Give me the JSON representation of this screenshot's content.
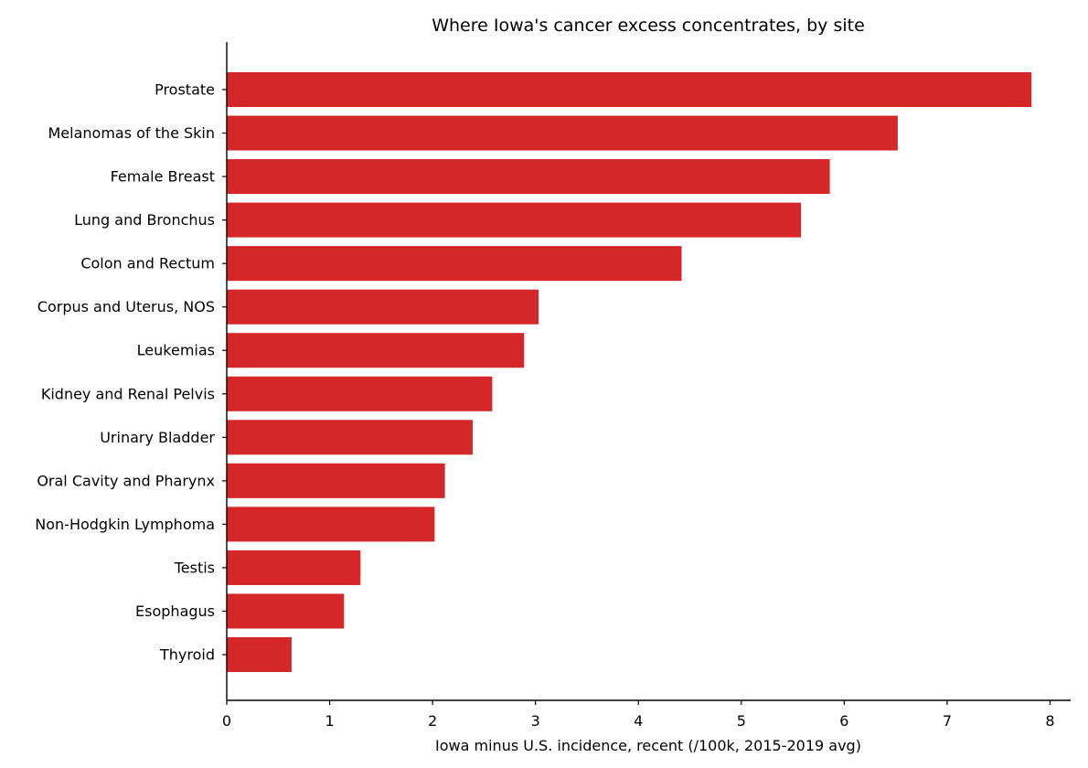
{
  "chart_data": {
    "type": "bar",
    "orientation": "horizontal",
    "title": "Where Iowa's cancer excess concentrates, by site",
    "xlabel": "Iowa minus U.S. incidence, recent (/100k, 2015-2019 avg)",
    "ylabel": "",
    "xlim": [
      0,
      8.2
    ],
    "xticks": [
      0,
      1,
      2,
      3,
      4,
      5,
      6,
      7,
      8
    ],
    "grid": false,
    "legend": "none",
    "bar_color": "#d62728",
    "categories": [
      "Prostate",
      "Melanomas of the Skin",
      "Female Breast",
      "Lung and Bronchus",
      "Colon and Rectum",
      "Corpus and Uterus, NOS",
      "Leukemias",
      "Kidney and Renal Pelvis",
      "Urinary Bladder",
      "Oral Cavity and Pharynx",
      "Non-Hodgkin Lymphoma",
      "Testis",
      "Esophagus",
      "Thyroid"
    ],
    "values": [
      7.82,
      6.52,
      5.86,
      5.58,
      4.42,
      3.03,
      2.89,
      2.58,
      2.39,
      2.12,
      2.02,
      1.3,
      1.14,
      0.63
    ]
  }
}
